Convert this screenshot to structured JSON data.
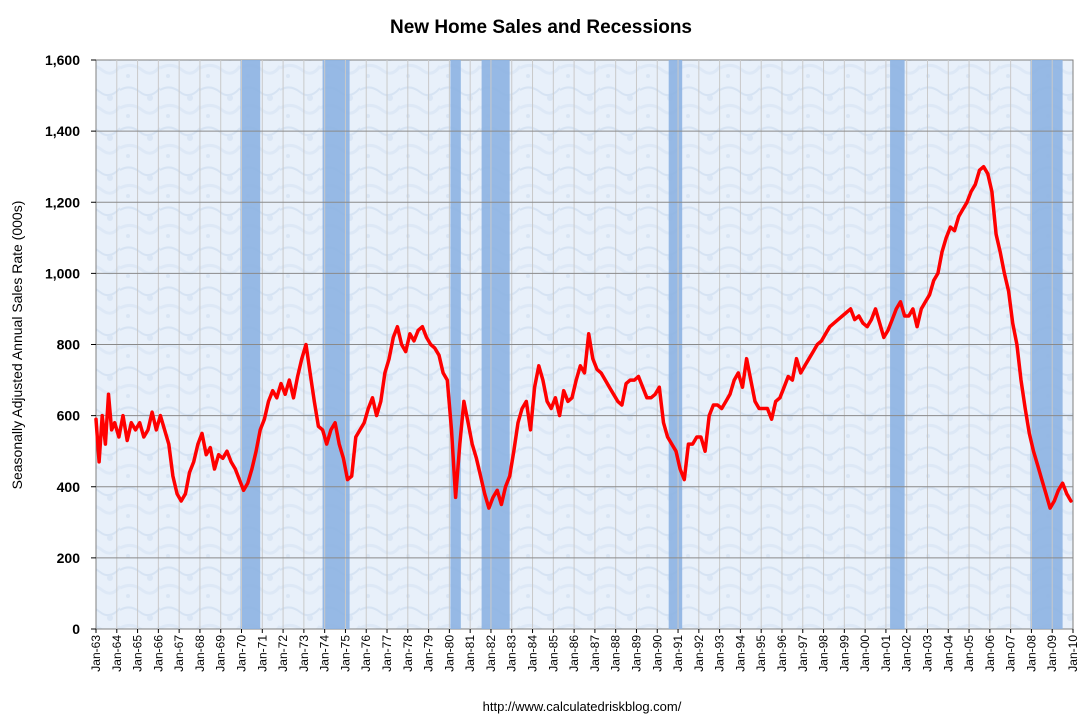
{
  "chart_data": {
    "type": "line",
    "title": "New Home Sales and Recessions",
    "ylabel": "Seasonally Adjusted Annual Sales Rate (000s)",
    "xlabel": "",
    "source": "http://www.calculatedriskblog.com/",
    "ylim": [
      0,
      1600
    ],
    "yticks": [
      0,
      200,
      400,
      600,
      800,
      1000,
      1200,
      1400,
      1600
    ],
    "ytick_labels": [
      "0",
      "200",
      "400",
      "600",
      "800",
      "1,000",
      "1,200",
      "1,400",
      "1,600"
    ],
    "xlim": [
      1963.0,
      2010.0
    ],
    "xtick_labels": [
      "Jan-63",
      "Jan-64",
      "Jan-65",
      "Jan-66",
      "Jan-67",
      "Jan-68",
      "Jan-69",
      "Jan-70",
      "Jan-71",
      "Jan-72",
      "Jan-73",
      "Jan-74",
      "Jan-75",
      "Jan-76",
      "Jan-77",
      "Jan-78",
      "Jan-79",
      "Jan-80",
      "Jan-81",
      "Jan-82",
      "Jan-83",
      "Jan-84",
      "Jan-85",
      "Jan-86",
      "Jan-87",
      "Jan-88",
      "Jan-89",
      "Jan-90",
      "Jan-91",
      "Jan-92",
      "Jan-93",
      "Jan-94",
      "Jan-95",
      "Jan-96",
      "Jan-97",
      "Jan-98",
      "Jan-99",
      "Jan-00",
      "Jan-01",
      "Jan-02",
      "Jan-03",
      "Jan-04",
      "Jan-05",
      "Jan-06",
      "Jan-07",
      "Jan-08",
      "Jan-09",
      "Jan-10"
    ],
    "grid": true,
    "recessions": [
      {
        "start": 1969.95,
        "end": 1970.9
      },
      {
        "start": 1973.9,
        "end": 1975.2
      },
      {
        "start": 1980.05,
        "end": 1980.55
      },
      {
        "start": 1981.55,
        "end": 1982.9
      },
      {
        "start": 1990.55,
        "end": 1991.2
      },
      {
        "start": 2001.2,
        "end": 2001.9
      },
      {
        "start": 2007.95,
        "end": 2009.5
      }
    ],
    "series": [
      {
        "name": "New Home Sales",
        "color": "#ff0000",
        "x": [
          1963.0,
          1963.15,
          1963.3,
          1963.45,
          1963.6,
          1963.75,
          1963.9,
          1964.1,
          1964.3,
          1964.5,
          1964.7,
          1964.9,
          1965.1,
          1965.3,
          1965.5,
          1965.7,
          1965.9,
          1966.1,
          1966.3,
          1966.5,
          1966.7,
          1966.9,
          1967.1,
          1967.3,
          1967.5,
          1967.7,
          1967.9,
          1968.1,
          1968.3,
          1968.5,
          1968.7,
          1968.9,
          1969.1,
          1969.3,
          1969.5,
          1969.7,
          1969.9,
          1970.1,
          1970.3,
          1970.5,
          1970.7,
          1970.9,
          1971.1,
          1971.3,
          1971.5,
          1971.7,
          1971.9,
          1972.1,
          1972.3,
          1972.5,
          1972.7,
          1972.9,
          1973.1,
          1973.3,
          1973.5,
          1973.7,
          1973.9,
          1974.1,
          1974.3,
          1974.5,
          1974.7,
          1974.9,
          1975.1,
          1975.3,
          1975.5,
          1975.7,
          1975.9,
          1976.1,
          1976.3,
          1976.5,
          1976.7,
          1976.9,
          1977.1,
          1977.3,
          1977.5,
          1977.7,
          1977.9,
          1978.1,
          1978.3,
          1978.5,
          1978.7,
          1978.9,
          1979.1,
          1979.3,
          1979.5,
          1979.7,
          1979.9,
          1980.1,
          1980.3,
          1980.5,
          1980.7,
          1980.9,
          1981.1,
          1981.3,
          1981.5,
          1981.7,
          1981.9,
          1982.1,
          1982.3,
          1982.5,
          1982.7,
          1982.9,
          1983.1,
          1983.3,
          1983.5,
          1983.7,
          1983.9,
          1984.1,
          1984.3,
          1984.5,
          1984.7,
          1984.9,
          1985.1,
          1985.3,
          1985.5,
          1985.7,
          1985.9,
          1986.1,
          1986.3,
          1986.5,
          1986.7,
          1986.9,
          1987.1,
          1987.3,
          1987.5,
          1987.7,
          1987.9,
          1988.1,
          1988.3,
          1988.5,
          1988.7,
          1988.9,
          1989.1,
          1989.3,
          1989.5,
          1989.7,
          1989.9,
          1990.1,
          1990.3,
          1990.5,
          1990.7,
          1990.9,
          1991.1,
          1991.3,
          1991.5,
          1991.7,
          1991.9,
          1992.1,
          1992.3,
          1992.5,
          1992.7,
          1992.9,
          1993.1,
          1993.3,
          1993.5,
          1993.7,
          1993.9,
          1994.1,
          1994.3,
          1994.5,
          1994.7,
          1994.9,
          1995.1,
          1995.3,
          1995.5,
          1995.7,
          1995.9,
          1996.1,
          1996.3,
          1996.5,
          1996.7,
          1996.9,
          1997.1,
          1997.3,
          1997.5,
          1997.7,
          1997.9,
          1998.1,
          1998.3,
          1998.5,
          1998.7,
          1998.9,
          1999.1,
          1999.3,
          1999.5,
          1999.7,
          1999.9,
          2000.1,
          2000.3,
          2000.5,
          2000.7,
          2000.9,
          2001.1,
          2001.3,
          2001.5,
          2001.7,
          2001.9,
          2002.1,
          2002.3,
          2002.5,
          2002.7,
          2002.9,
          2003.1,
          2003.3,
          2003.5,
          2003.7,
          2003.9,
          2004.1,
          2004.3,
          2004.5,
          2004.7,
          2004.9,
          2005.1,
          2005.3,
          2005.5,
          2005.7,
          2005.9,
          2006.1,
          2006.3,
          2006.5,
          2006.7,
          2006.9,
          2007.1,
          2007.3,
          2007.5,
          2007.7,
          2007.9,
          2008.1,
          2008.3,
          2008.5,
          2008.7,
          2008.9,
          2009.1,
          2009.3,
          2009.5,
          2009.7,
          2009.9
        ],
        "values": [
          590,
          470,
          600,
          520,
          660,
          560,
          580,
          540,
          600,
          530,
          580,
          560,
          580,
          540,
          560,
          610,
          560,
          600,
          560,
          520,
          430,
          380,
          360,
          380,
          440,
          470,
          520,
          550,
          490,
          510,
          450,
          490,
          480,
          500,
          470,
          450,
          420,
          390,
          410,
          450,
          500,
          560,
          590,
          640,
          670,
          650,
          690,
          660,
          700,
          650,
          710,
          760,
          800,
          720,
          640,
          570,
          560,
          520,
          560,
          580,
          520,
          480,
          420,
          430,
          540,
          560,
          580,
          620,
          650,
          600,
          640,
          720,
          760,
          820,
          850,
          800,
          780,
          830,
          810,
          840,
          850,
          820,
          800,
          790,
          770,
          720,
          700,
          560,
          370,
          520,
          640,
          580,
          520,
          480,
          430,
          380,
          340,
          370,
          390,
          350,
          400,
          430,
          500,
          580,
          620,
          640,
          560,
          680,
          740,
          700,
          640,
          620,
          650,
          600,
          670,
          640,
          650,
          700,
          740,
          720,
          830,
          760,
          730,
          720,
          700,
          680,
          660,
          640,
          630,
          690,
          700,
          700,
          710,
          680,
          650,
          650,
          660,
          680,
          580,
          540,
          520,
          500,
          450,
          420,
          520,
          520,
          540,
          540,
          500,
          600,
          630,
          630,
          620,
          640,
          660,
          700,
          720,
          680,
          760,
          700,
          640,
          620,
          620,
          620,
          590,
          640,
          650,
          680,
          710,
          700,
          760,
          720,
          740,
          760,
          780,
          800,
          810,
          830,
          850,
          860,
          870,
          880,
          890,
          900,
          870,
          880,
          860,
          850,
          870,
          900,
          860,
          820,
          840,
          870,
          900,
          920,
          880,
          880,
          900,
          850,
          900,
          920,
          940,
          980,
          1000,
          1060,
          1100,
          1130,
          1120,
          1160,
          1180,
          1200,
          1230,
          1250,
          1290,
          1300,
          1280,
          1230,
          1110,
          1060,
          1000,
          950,
          860,
          800,
          700,
          620,
          550,
          500,
          460,
          420,
          380,
          340,
          360,
          390,
          410,
          380,
          360
        ]
      }
    ]
  }
}
